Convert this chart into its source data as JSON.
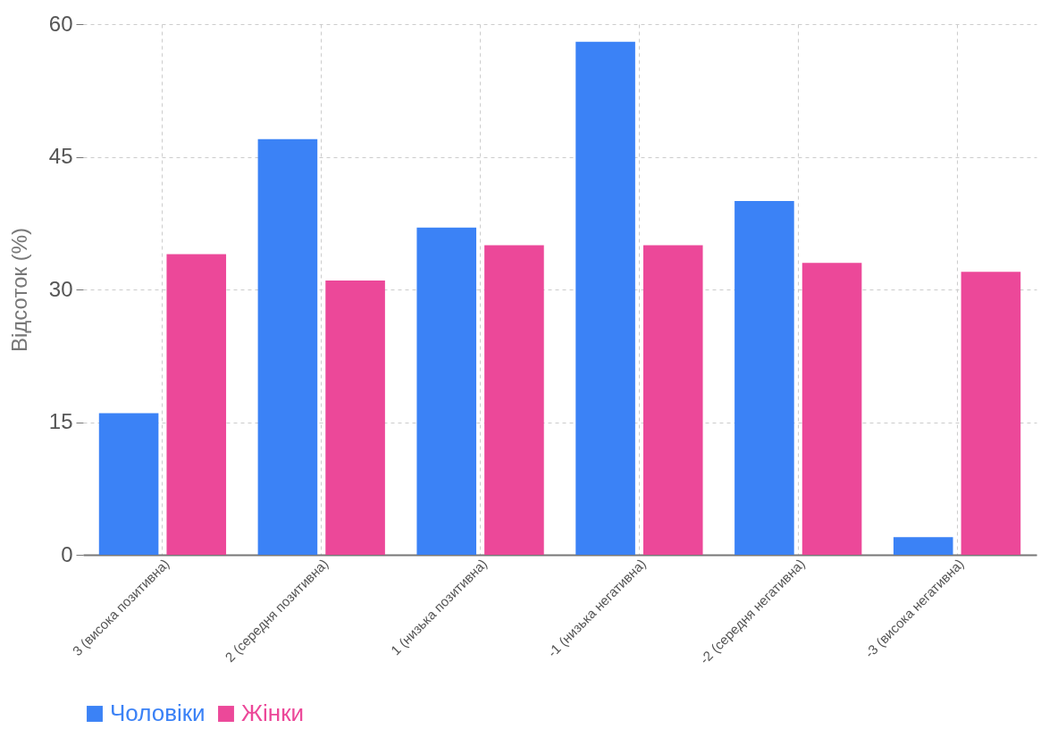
{
  "chart_data": {
    "type": "bar",
    "ylabel": "Відсоток (%)",
    "categories": [
      "3 (висока позитивна)",
      "2 (середня позитивна)",
      "1 (низька позитивна)",
      "-1 (низька негативна)",
      "-2 (середня негативна)",
      "-3 (висока негативна)"
    ],
    "series": [
      {
        "name": "Чоловіки",
        "color": "#3b82f6",
        "values": [
          16,
          47,
          37,
          58,
          40,
          2
        ]
      },
      {
        "name": "Жінки",
        "color": "#ec4899",
        "values": [
          34,
          31,
          35,
          35,
          33,
          32
        ]
      }
    ],
    "ylim": [
      0,
      60
    ],
    "yticks": [
      0,
      15,
      30,
      45,
      60
    ],
    "grid": true,
    "legend": "bottom"
  }
}
